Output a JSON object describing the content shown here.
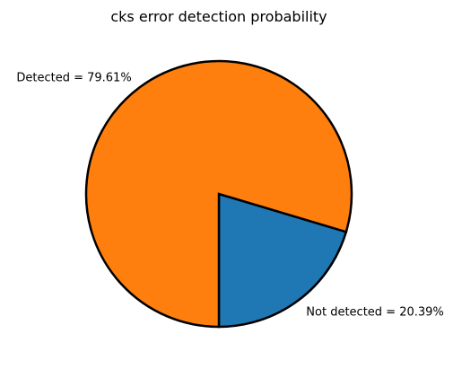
{
  "chart_data": {
    "type": "pie",
    "title": "cks error detection probability",
    "slices": [
      {
        "label": "Not detected = 20.39%",
        "value": 20.39,
        "color": "#1f77b4"
      },
      {
        "label": "Detected = 79.61%",
        "value": 79.61,
        "color": "#ff7f0e"
      }
    ],
    "start_angle_deg": 270,
    "direction": "counterclockwise",
    "edge_color": "#000000"
  }
}
